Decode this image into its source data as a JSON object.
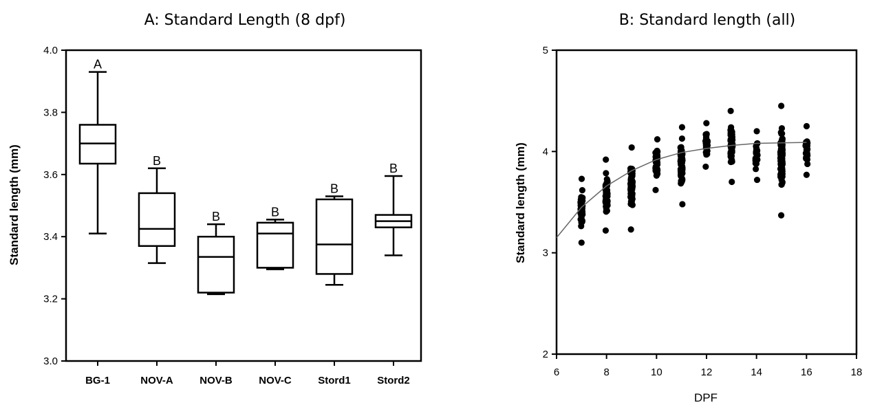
{
  "chart_data": [
    {
      "type": "box",
      "title": "A: Standard Length (8 dpf)",
      "xlabel": "",
      "ylabel": "Standard length (mm)",
      "ylim": [
        3.0,
        4.0
      ],
      "yticks": [
        "3.0",
        "3.2",
        "3.4",
        "3.6",
        "3.8",
        "4.0"
      ],
      "categories": [
        "BG-1",
        "NOV-A",
        "NOV-B",
        "NOV-C",
        "Stord1",
        "Stord2"
      ],
      "boxes": [
        {
          "min": 3.41,
          "q1": 3.635,
          "median": 3.7,
          "q3": 3.76,
          "max": 3.93,
          "letter": "A"
        },
        {
          "min": 3.315,
          "q1": 3.37,
          "median": 3.425,
          "q3": 3.54,
          "max": 3.62,
          "letter": "B"
        },
        {
          "min": 3.215,
          "q1": 3.22,
          "median": 3.335,
          "q3": 3.4,
          "max": 3.44,
          "letter": "B"
        },
        {
          "min": 3.295,
          "q1": 3.3,
          "median": 3.41,
          "q3": 3.445,
          "max": 3.455,
          "letter": "B"
        },
        {
          "min": 3.245,
          "q1": 3.28,
          "median": 3.375,
          "q3": 3.52,
          "max": 3.53,
          "letter": "B"
        },
        {
          "min": 3.34,
          "q1": 3.43,
          "median": 3.45,
          "q3": 3.47,
          "max": 3.595,
          "letter": "B"
        }
      ]
    },
    {
      "type": "scatter",
      "title": "B: Standard length (all)",
      "xlabel": "DPF",
      "ylabel": "Standard length (mm)",
      "xlim": [
        6,
        18
      ],
      "ylim": [
        2,
        5
      ],
      "xticks": [
        "6",
        "8",
        "10",
        "12",
        "14",
        "16",
        "18"
      ],
      "yticks": [
        "2",
        "3",
        "4",
        "5"
      ],
      "groups": [
        {
          "x": 7,
          "min": 3.1,
          "max": 3.73
        },
        {
          "x": 8,
          "min": 3.22,
          "max": 3.92
        },
        {
          "x": 9,
          "min": 3.23,
          "max": 4.04
        },
        {
          "x": 10,
          "min": 3.62,
          "max": 4.12
        },
        {
          "x": 11,
          "min": 3.48,
          "max": 4.24
        },
        {
          "x": 12,
          "min": 3.85,
          "max": 4.28
        },
        {
          "x": 13,
          "min": 3.7,
          "max": 4.4
        },
        {
          "x": 14,
          "min": 3.72,
          "max": 4.2
        },
        {
          "x": 15,
          "min": 3.37,
          "max": 4.45
        },
        {
          "x": 16,
          "min": 3.77,
          "max": 4.25
        }
      ],
      "fit_curve": {
        "x": [
          6,
          7,
          8,
          9,
          10,
          11,
          12,
          13,
          14,
          15,
          16
        ],
        "y": [
          3.15,
          3.45,
          3.66,
          3.81,
          3.92,
          3.99,
          4.03,
          4.06,
          4.08,
          4.085,
          4.09
        ]
      }
    }
  ]
}
